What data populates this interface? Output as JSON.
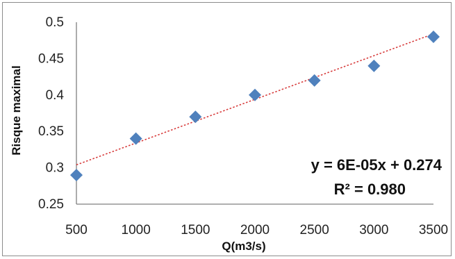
{
  "chart_data": {
    "type": "scatter",
    "title": "",
    "xlabel": "Q(m3/s)",
    "ylabel": "Risque maximal",
    "xlim": [
      500,
      3500
    ],
    "ylim": [
      0.25,
      0.5
    ],
    "x_ticks": [
      "500",
      "1000",
      "1500",
      "2000",
      "2500",
      "3000",
      "3500"
    ],
    "y_ticks": [
      "0.25",
      "0.3",
      "0.35",
      "0.4",
      "0.45",
      "0.5"
    ],
    "grid": false,
    "legend": "none",
    "series": [
      {
        "marker": "diamond",
        "color": "#4f81bd",
        "points": [
          {
            "x": 500,
            "y": 0.29
          },
          {
            "x": 1000,
            "y": 0.34
          },
          {
            "x": 1500,
            "y": 0.37
          },
          {
            "x": 2000,
            "y": 0.4
          },
          {
            "x": 2500,
            "y": 0.42
          },
          {
            "x": 3000,
            "y": 0.44
          },
          {
            "x": 3500,
            "y": 0.48
          }
        ]
      }
    ],
    "trendline": {
      "type": "linear",
      "style": "dotted",
      "color": "#d73a3a",
      "slope": 6e-05,
      "intercept": 0.274,
      "equation": "y = 6E-05x + 0.274",
      "r_squared": "R² = 0.980"
    },
    "axis_color": "#7f7f7f"
  }
}
